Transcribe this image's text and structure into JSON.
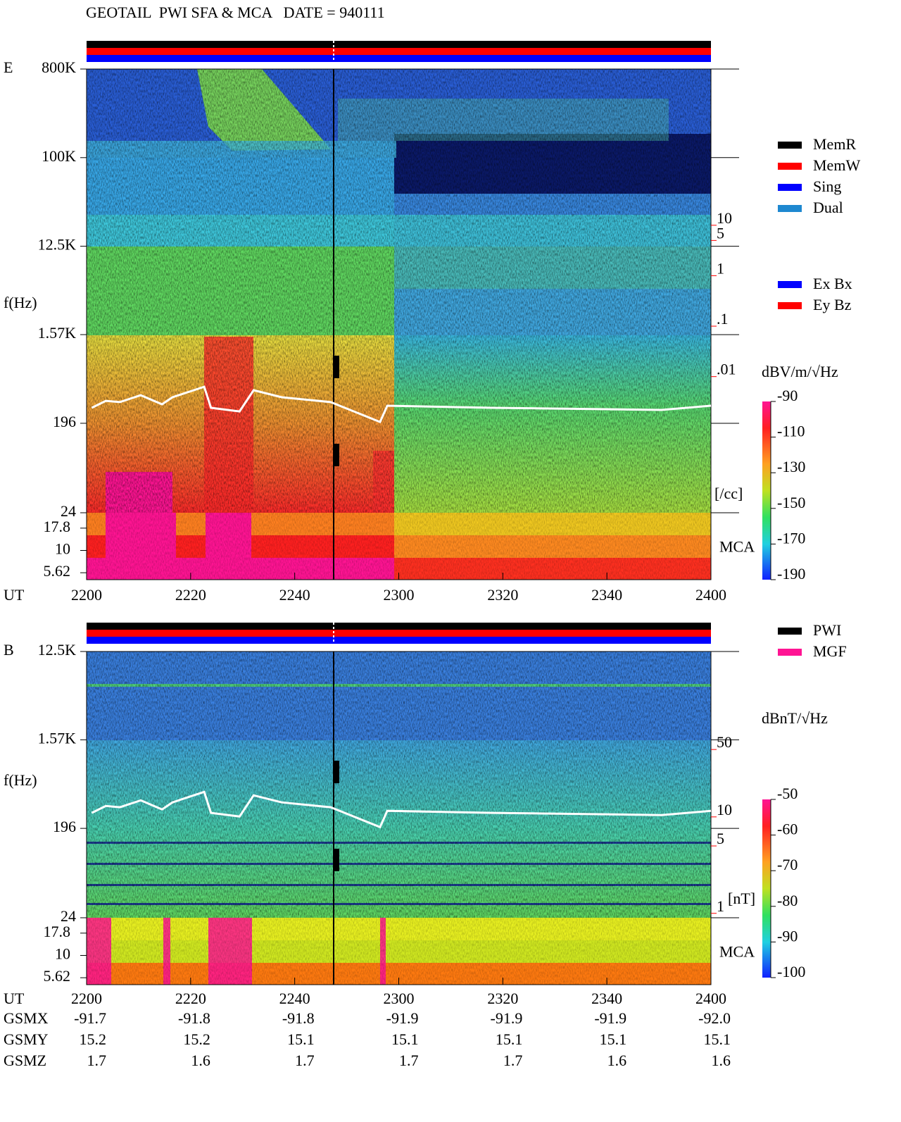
{
  "title": "GEOTAIL  PWI SFA & MCA   DATE = 940111",
  "chart_data": [
    {
      "type": "spectrogram",
      "panel_label": "E",
      "ylabel": "f(Hz)",
      "xlabel": "UT",
      "xlim": [
        1320,
        1440
      ],
      "xticks": [
        {
          "value": 1320,
          "label": "2200"
        },
        {
          "value": 1340,
          "label": "2220"
        },
        {
          "value": 1360,
          "label": "2240"
        },
        {
          "value": 1380,
          "label": "2300"
        },
        {
          "value": 1400,
          "label": "2320"
        },
        {
          "value": 1420,
          "label": "2340"
        },
        {
          "value": 1440,
          "label": "2400"
        }
      ],
      "log_y": true,
      "ylim": [
        24,
        800000
      ],
      "yticks": [
        {
          "value": 800000,
          "label": "800K"
        },
        {
          "value": 100000,
          "label": "100K"
        },
        {
          "value": 12500,
          "label": "12.5K"
        },
        {
          "value": 1570,
          "label": "1.57K"
        },
        196,
        24
      ],
      "mca_ticks": [
        17.8,
        10,
        5.62
      ],
      "mca_label": "MCA",
      "y2lim": [
        2e-05,
        12500
      ],
      "y2ticks": [
        10,
        5,
        1,
        {
          "value": 0.1,
          "label": ".1"
        },
        {
          "value": 0.01,
          "label": ".01"
        }
      ],
      "y2label": "[/cc]",
      "y2color": "#ff0000",
      "colorbar": {
        "label": "dBV/m/√Hz",
        "lim": [
          -190,
          -90
        ],
        "ticks": [
          -90,
          -110,
          -130,
          -150,
          -170,
          -190
        ]
      },
      "legend_groups": [
        [
          {
            "name": "MemR",
            "color": "#000000"
          },
          {
            "name": "MemW",
            "color": "#ff0000"
          },
          {
            "name": "Sing",
            "color": "#0000ff"
          },
          {
            "name": "Dual",
            "color": "#1e88d0"
          }
        ],
        [
          {
            "name": "Ex Bx",
            "color": "#0000ff"
          },
          {
            "name": "Ey Bz",
            "color": "#ff0000"
          }
        ]
      ],
      "trace": {
        "color": "#ffffff",
        "x": [
          1321,
          1323.7,
          1326.4,
          1330.4,
          1334.5,
          1336.5,
          1342.6,
          1343.9,
          1349.4,
          1352.1,
          1357.5,
          1366.9,
          1376.4,
          1377.8,
          1398.1,
          1430.5,
          1440
        ],
        "values": [
          282,
          332,
          322,
          379,
          306,
          361,
          462,
          282,
          259,
          426,
          361,
          322,
          202,
          296,
          282,
          268,
          296
        ]
      }
    },
    {
      "type": "spectrogram",
      "panel_label": "B",
      "ylabel": "f(Hz)",
      "xlabel": "UT",
      "xlim": [
        1320,
        1440
      ],
      "xticks": [
        {
          "value": 1320,
          "label": "2200"
        },
        {
          "value": 1340,
          "label": "2220"
        },
        {
          "value": 1360,
          "label": "2240"
        },
        {
          "value": 1380,
          "label": "2300"
        },
        {
          "value": 1400,
          "label": "2320"
        },
        {
          "value": 1420,
          "label": "2340"
        },
        {
          "value": 1440,
          "label": "2400"
        }
      ],
      "log_y": true,
      "ylim": [
        24,
        12500
      ],
      "yticks": [
        {
          "value": 12500,
          "label": "12.5K"
        },
        {
          "value": 1570,
          "label": "1.57K"
        },
        196,
        24
      ],
      "mca_ticks": [
        17.8,
        10,
        5.62
      ],
      "mca_label": "MCA",
      "y2lim": [
        0.9,
        519
      ],
      "y2ticks": [
        50,
        10,
        5,
        1
      ],
      "y2label": "[nT]",
      "y2color": "#ff0000",
      "colorbar": {
        "label": "dBnT/√Hz",
        "lim": [
          -100,
          -50
        ],
        "ticks": [
          -50,
          -60,
          -70,
          -80,
          -90,
          -100
        ]
      },
      "legend_groups": [
        [
          {
            "name": "PWI",
            "color": "#000000"
          },
          {
            "name": "MGF",
            "color": "#ff1493"
          }
        ]
      ],
      "trace": {
        "color": "#ffffff",
        "x": [
          1321,
          1323.7,
          1326.4,
          1330.4,
          1334.5,
          1336.5,
          1342.6,
          1343.9,
          1349.4,
          1352.1,
          1357.5,
          1366.9,
          1376.4,
          1377.8,
          1398.1,
          1430.5,
          1440
        ],
        "values": [
          282,
          332,
          322,
          379,
          306,
          361,
          462,
          282,
          259,
          426,
          361,
          322,
          202,
          296,
          282,
          268,
          296
        ]
      }
    }
  ],
  "orbit": {
    "rows": [
      {
        "name": "GSMX",
        "values": [
          -91.7,
          -91.8,
          -91.8,
          -91.9,
          -91.9,
          -91.9,
          {
            "value": -92,
            "label": "-92.0"
          }
        ]
      },
      {
        "name": "GSMY",
        "values": [
          15.2,
          15.2,
          15.1,
          15.1,
          15.1,
          15.1,
          15.1
        ]
      },
      {
        "name": "GSMZ",
        "values": [
          1.7,
          1.6,
          1.7,
          1.7,
          1.7,
          1.6,
          1.6
        ]
      }
    ]
  }
}
